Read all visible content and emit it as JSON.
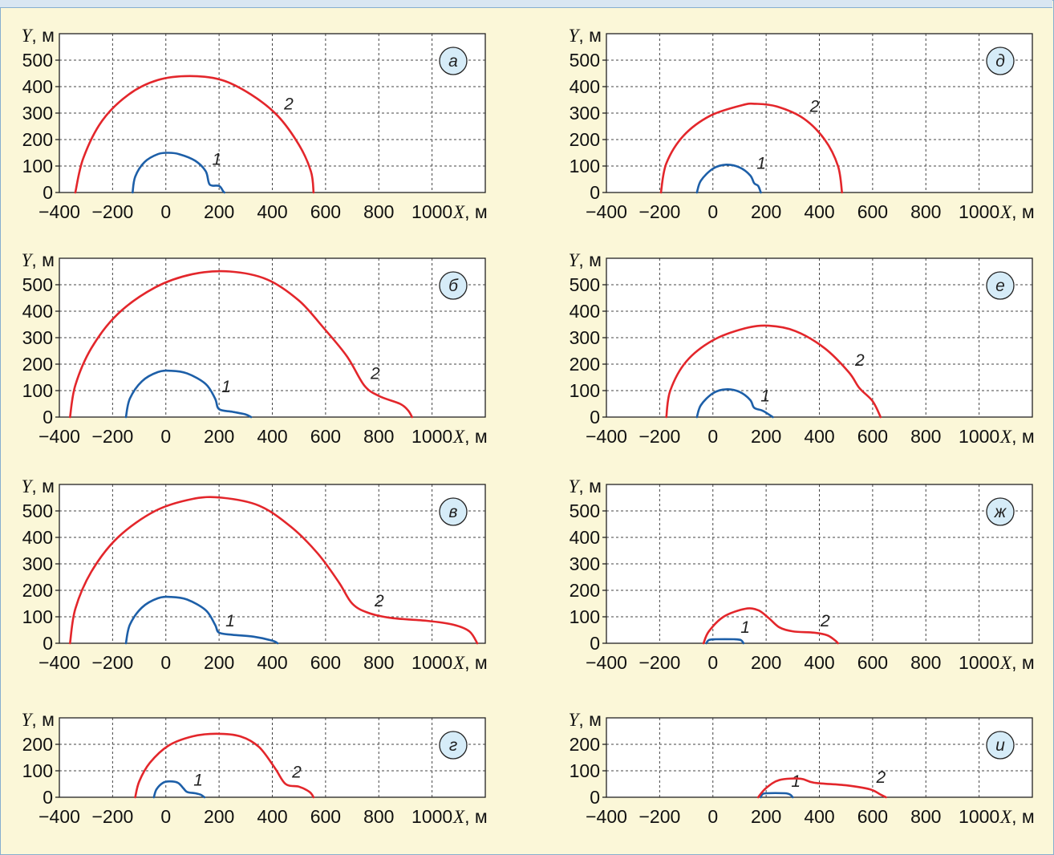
{
  "colors": {
    "background": "#fbf7d8",
    "border": "#86aed0",
    "curve_1": "#1d5fa8",
    "curve_2": "#e3262b",
    "label_badge": "#d6ecf8"
  },
  "chart_data": [
    {
      "type": "line",
      "panel_label": "а",
      "xlabel": "X, м",
      "ylabel": "Y, м",
      "xlim": [
        -400,
        1200
      ],
      "ylim": [
        0,
        600
      ],
      "xticks": [
        "−400",
        "−200",
        "0",
        "200",
        "400",
        "600",
        "800",
        "1000"
      ],
      "yticks": [
        "0",
        "100",
        "200",
        "300",
        "400",
        "500"
      ],
      "series": [
        {
          "name": "1",
          "points": [
            [
              -125,
              0
            ],
            [
              -115,
              60
            ],
            [
              -80,
              115
            ],
            [
              -30,
              145
            ],
            [
              10,
              150
            ],
            [
              50,
              145
            ],
            [
              110,
              120
            ],
            [
              150,
              80
            ],
            [
              165,
              30
            ],
            [
              200,
              25
            ],
            [
              215,
              5
            ],
            [
              220,
              0
            ]
          ]
        },
        {
          "name": "2",
          "points": [
            [
              -340,
              0
            ],
            [
              -310,
              130
            ],
            [
              -240,
              270
            ],
            [
              -140,
              370
            ],
            [
              -30,
              425
            ],
            [
              90,
              440
            ],
            [
              210,
              425
            ],
            [
              320,
              370
            ],
            [
              420,
              290
            ],
            [
              500,
              180
            ],
            [
              545,
              80
            ],
            [
              555,
              0
            ]
          ]
        }
      ]
    },
    {
      "type": "line",
      "panel_label": "б",
      "xlabel": "X, м",
      "ylabel": "Y, м",
      "xlim": [
        -400,
        1200
      ],
      "ylim": [
        0,
        600
      ],
      "xticks": [
        "−400",
        "−200",
        "0",
        "200",
        "400",
        "600",
        "800",
        "1000"
      ],
      "yticks": [
        "0",
        "100",
        "200",
        "300",
        "400",
        "500"
      ],
      "series": [
        {
          "name": "1",
          "points": [
            [
              -150,
              0
            ],
            [
              -135,
              70
            ],
            [
              -90,
              135
            ],
            [
              -30,
              170
            ],
            [
              20,
              175
            ],
            [
              80,
              165
            ],
            [
              150,
              125
            ],
            [
              185,
              70
            ],
            [
              200,
              30
            ],
            [
              250,
              20
            ],
            [
              300,
              10
            ],
            [
              320,
              0
            ]
          ]
        },
        {
          "name": "2",
          "points": [
            [
              -360,
              0
            ],
            [
              -340,
              120
            ],
            [
              -280,
              260
            ],
            [
              -180,
              390
            ],
            [
              -40,
              490
            ],
            [
              100,
              540
            ],
            [
              240,
              550
            ],
            [
              380,
              520
            ],
            [
              500,
              440
            ],
            [
              590,
              340
            ],
            [
              680,
              230
            ],
            [
              745,
              120
            ],
            [
              800,
              80
            ],
            [
              880,
              50
            ],
            [
              910,
              25
            ],
            [
              925,
              0
            ]
          ]
        }
      ]
    },
    {
      "type": "line",
      "panel_label": "в",
      "xlabel": "X, м",
      "ylabel": "Y, м",
      "xlim": [
        -400,
        1200
      ],
      "ylim": [
        0,
        600
      ],
      "xticks": [
        "−400",
        "−200",
        "0",
        "200",
        "400",
        "600",
        "800",
        "1000"
      ],
      "yticks": [
        "0",
        "100",
        "200",
        "300",
        "400",
        "500"
      ],
      "series": [
        {
          "name": "1",
          "points": [
            [
              -150,
              0
            ],
            [
              -135,
              70
            ],
            [
              -90,
              135
            ],
            [
              -30,
              170
            ],
            [
              20,
              175
            ],
            [
              80,
              165
            ],
            [
              150,
              125
            ],
            [
              185,
              70
            ],
            [
              200,
              40
            ],
            [
              250,
              32
            ],
            [
              330,
              25
            ],
            [
              400,
              10
            ],
            [
              420,
              0
            ]
          ]
        },
        {
          "name": "2",
          "points": [
            [
              -360,
              0
            ],
            [
              -340,
              130
            ],
            [
              -280,
              270
            ],
            [
              -180,
              400
            ],
            [
              -40,
              500
            ],
            [
              100,
              545
            ],
            [
              210,
              550
            ],
            [
              350,
              520
            ],
            [
              470,
              440
            ],
            [
              570,
              340
            ],
            [
              650,
              230
            ],
            [
              700,
              150
            ],
            [
              760,
              115
            ],
            [
              850,
              95
            ],
            [
              980,
              85
            ],
            [
              1080,
              70
            ],
            [
              1140,
              45
            ],
            [
              1170,
              0
            ]
          ]
        }
      ]
    },
    {
      "type": "line",
      "panel_label": "г",
      "xlabel": "X, м",
      "ylabel": "Y, м",
      "xlim": [
        -400,
        1200
      ],
      "ylim": [
        0,
        300
      ],
      "xticks": [
        "−400",
        "−200",
        "0",
        "200",
        "400",
        "600",
        "800",
        "1000"
      ],
      "yticks": [
        "0",
        "100",
        "200"
      ],
      "series": [
        {
          "name": "1",
          "points": [
            [
              -45,
              0
            ],
            [
              -35,
              30
            ],
            [
              -10,
              55
            ],
            [
              15,
              60
            ],
            [
              45,
              55
            ],
            [
              65,
              35
            ],
            [
              80,
              20
            ],
            [
              110,
              15
            ],
            [
              130,
              10
            ],
            [
              145,
              0
            ]
          ]
        },
        {
          "name": "2",
          "points": [
            [
              -115,
              0
            ],
            [
              -100,
              60
            ],
            [
              -60,
              130
            ],
            [
              10,
              195
            ],
            [
              100,
              230
            ],
            [
              190,
              240
            ],
            [
              280,
              230
            ],
            [
              350,
              190
            ],
            [
              410,
              110
            ],
            [
              450,
              50
            ],
            [
              500,
              40
            ],
            [
              540,
              20
            ],
            [
              555,
              0
            ]
          ]
        }
      ]
    },
    {
      "type": "line",
      "panel_label": "д",
      "xlabel": "X, м",
      "ylabel": "Y, м",
      "xlim": [
        -400,
        1200
      ],
      "ylim": [
        0,
        600
      ],
      "xticks": [
        "−400",
        "−200",
        "0",
        "200",
        "400",
        "600",
        "800",
        "1000"
      ],
      "yticks": [
        "0",
        "100",
        "200",
        "300",
        "400",
        "500"
      ],
      "series": [
        {
          "name": "1",
          "points": [
            [
              -60,
              0
            ],
            [
              -45,
              45
            ],
            [
              0,
              90
            ],
            [
              50,
              105
            ],
            [
              100,
              95
            ],
            [
              140,
              65
            ],
            [
              155,
              35
            ],
            [
              170,
              25
            ],
            [
              180,
              0
            ]
          ]
        },
        {
          "name": "2",
          "points": [
            [
              -195,
              0
            ],
            [
              -175,
              110
            ],
            [
              -110,
              215
            ],
            [
              -10,
              290
            ],
            [
              110,
              330
            ],
            [
              160,
              335
            ],
            [
              240,
              325
            ],
            [
              340,
              280
            ],
            [
              420,
              200
            ],
            [
              470,
              100
            ],
            [
              485,
              0
            ]
          ]
        }
      ]
    },
    {
      "type": "line",
      "panel_label": "е",
      "xlabel": "X, м",
      "ylabel": "Y, м",
      "xlim": [
        -400,
        1200
      ],
      "ylim": [
        0,
        600
      ],
      "xticks": [
        "−400",
        "−200",
        "0",
        "200",
        "400",
        "600",
        "800",
        "1000"
      ],
      "yticks": [
        "0",
        "100",
        "200",
        "300",
        "400",
        "500"
      ],
      "series": [
        {
          "name": "1",
          "points": [
            [
              -60,
              0
            ],
            [
              -45,
              45
            ],
            [
              0,
              90
            ],
            [
              50,
              105
            ],
            [
              100,
              95
            ],
            [
              140,
              65
            ],
            [
              155,
              35
            ],
            [
              185,
              25
            ],
            [
              210,
              10
            ],
            [
              225,
              0
            ]
          ]
        },
        {
          "name": "2",
          "points": [
            [
              -175,
              0
            ],
            [
              -160,
              100
            ],
            [
              -100,
              210
            ],
            [
              0,
              290
            ],
            [
              120,
              335
            ],
            [
              210,
              345
            ],
            [
              310,
              325
            ],
            [
              420,
              260
            ],
            [
              510,
              170
            ],
            [
              550,
              110
            ],
            [
              600,
              60
            ],
            [
              630,
              0
            ]
          ]
        }
      ]
    },
    {
      "type": "line",
      "panel_label": "ж",
      "xlabel": "X, м",
      "ylabel": "Y, м",
      "xlim": [
        -400,
        1200
      ],
      "ylim": [
        0,
        600
      ],
      "xticks": [
        "−400",
        "−200",
        "0",
        "200",
        "400",
        "600",
        "800",
        "1000"
      ],
      "yticks": [
        "0",
        "100",
        "200",
        "300",
        "400",
        "500"
      ],
      "series": [
        {
          "name": "1",
          "points": [
            [
              -25,
              0
            ],
            [
              -15,
              12
            ],
            [
              10,
              15
            ],
            [
              80,
              15
            ],
            [
              105,
              12
            ],
            [
              115,
              0
            ]
          ]
        },
        {
          "name": "2",
          "points": [
            [
              -35,
              0
            ],
            [
              -15,
              45
            ],
            [
              40,
              100
            ],
            [
              120,
              130
            ],
            [
              170,
              125
            ],
            [
              210,
              95
            ],
            [
              250,
              60
            ],
            [
              300,
              45
            ],
            [
              380,
              40
            ],
            [
              430,
              30
            ],
            [
              460,
              10
            ],
            [
              470,
              0
            ]
          ]
        }
      ]
    },
    {
      "type": "line",
      "panel_label": "и",
      "xlabel": "X, м",
      "ylabel": "Y, м",
      "xlim": [
        -400,
        1200
      ],
      "ylim": [
        0,
        300
      ],
      "xticks": [
        "−400",
        "−200",
        "0",
        "200",
        "400",
        "600",
        "800",
        "1000"
      ],
      "yticks": [
        "0",
        "100",
        "200"
      ],
      "series": [
        {
          "name": "1",
          "points": [
            [
              180,
              0
            ],
            [
              185,
              10
            ],
            [
              200,
              15
            ],
            [
              270,
              15
            ],
            [
              290,
              10
            ],
            [
              300,
              0
            ]
          ]
        },
        {
          "name": "2",
          "points": [
            [
              170,
              0
            ],
            [
              200,
              35
            ],
            [
              250,
              65
            ],
            [
              330,
              70
            ],
            [
              380,
              55
            ],
            [
              500,
              45
            ],
            [
              590,
              30
            ],
            [
              630,
              10
            ],
            [
              650,
              0
            ]
          ]
        }
      ]
    }
  ]
}
